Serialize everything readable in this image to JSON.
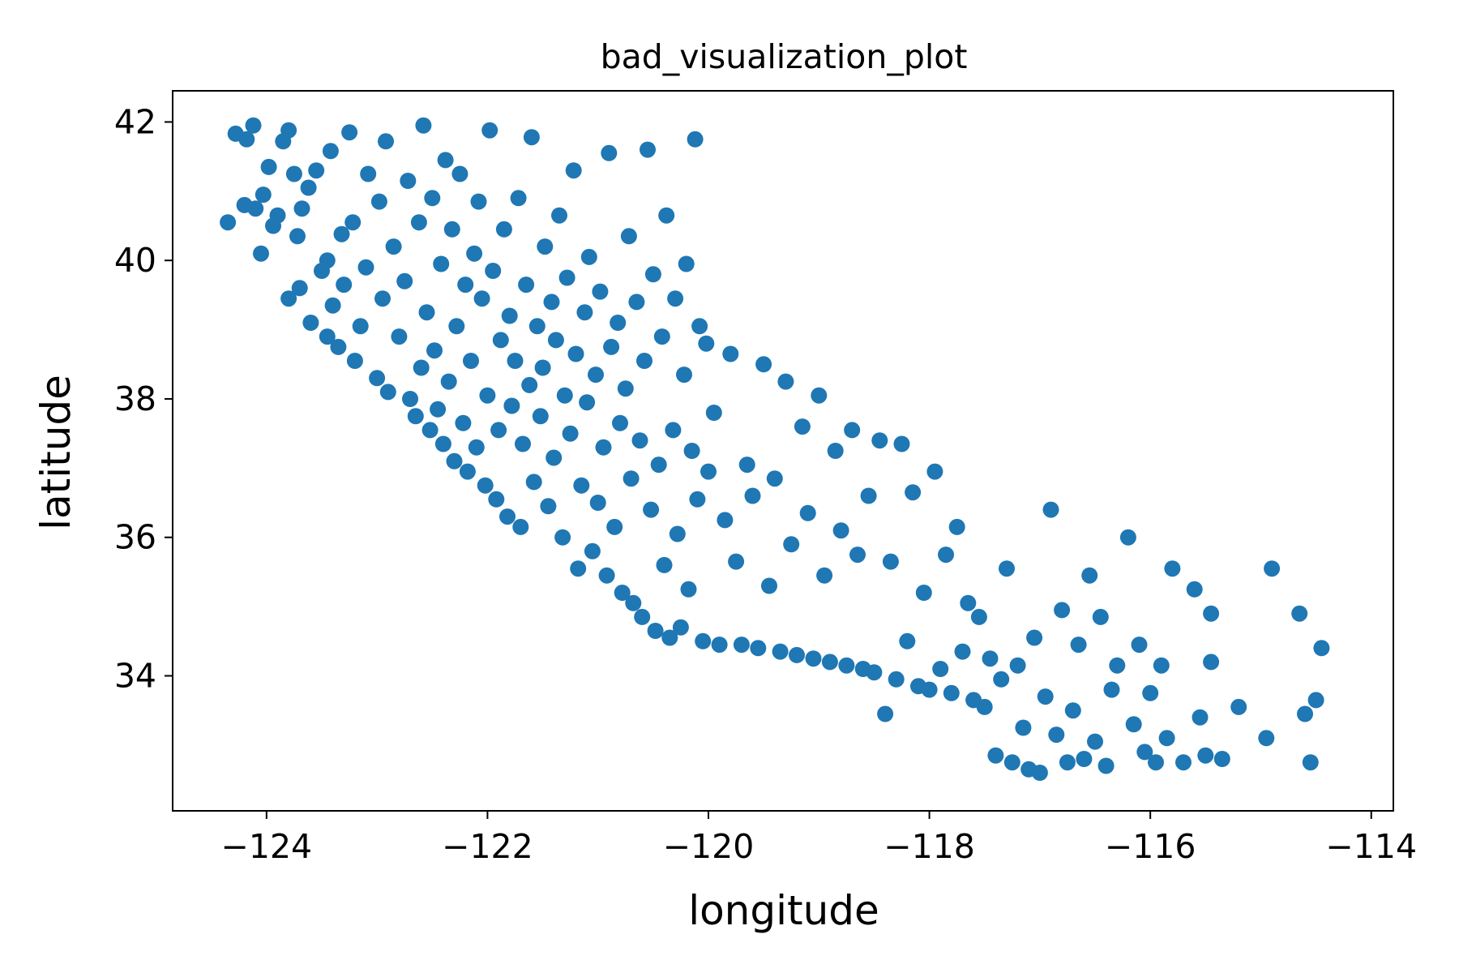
{
  "chart_data": {
    "type": "scatter",
    "title": "bad_visualization_plot",
    "xlabel": "longitude",
    "ylabel": "latitude",
    "xlim": [
      -124.85,
      -113.8
    ],
    "ylim": [
      32.05,
      42.45
    ],
    "xticks": [
      -124,
      -122,
      -120,
      -118,
      -116,
      -114
    ],
    "yticks": [
      34,
      36,
      38,
      40,
      42
    ],
    "xtick_labels": [
      "−124",
      "−122",
      "−120",
      "−118",
      "−116",
      "−114"
    ],
    "ytick_labels": [
      "34",
      "36",
      "38",
      "40",
      "42"
    ],
    "grid": false,
    "legend": "none",
    "marker_color": "#1f77b4",
    "series": [
      {
        "values": [
          [
            -124.35,
            40.55
          ],
          [
            -124.28,
            41.83
          ],
          [
            -124.2,
            40.8
          ],
          [
            -124.18,
            41.75
          ],
          [
            -124.12,
            41.95
          ],
          [
            -124.1,
            40.75
          ],
          [
            -124.05,
            40.1
          ],
          [
            -124.03,
            40.95
          ],
          [
            -123.98,
            41.35
          ],
          [
            -123.94,
            40.5
          ],
          [
            -123.9,
            40.65
          ],
          [
            -123.85,
            41.72
          ],
          [
            -123.8,
            41.88
          ],
          [
            -123.8,
            39.45
          ],
          [
            -123.75,
            41.25
          ],
          [
            -123.72,
            40.35
          ],
          [
            -123.7,
            39.6
          ],
          [
            -123.68,
            40.75
          ],
          [
            -123.62,
            41.05
          ],
          [
            -123.6,
            39.1
          ],
          [
            -123.55,
            41.3
          ],
          [
            -123.5,
            39.85
          ],
          [
            -123.45,
            38.9
          ],
          [
            -123.45,
            40.0
          ],
          [
            -123.42,
            41.58
          ],
          [
            -123.4,
            39.35
          ],
          [
            -123.35,
            38.75
          ],
          [
            -123.32,
            40.38
          ],
          [
            -123.3,
            39.65
          ],
          [
            -123.25,
            41.85
          ],
          [
            -123.22,
            40.55
          ],
          [
            -123.2,
            38.55
          ],
          [
            -123.15,
            39.05
          ],
          [
            -123.1,
            39.9
          ],
          [
            -123.08,
            41.25
          ],
          [
            -123.0,
            38.3
          ],
          [
            -122.98,
            40.85
          ],
          [
            -122.95,
            39.45
          ],
          [
            -122.92,
            41.72
          ],
          [
            -122.9,
            38.1
          ],
          [
            -122.85,
            40.2
          ],
          [
            -122.8,
            38.9
          ],
          [
            -122.75,
            39.7
          ],
          [
            -122.72,
            41.15
          ],
          [
            -122.7,
            38.0
          ],
          [
            -122.65,
            37.75
          ],
          [
            -122.62,
            40.55
          ],
          [
            -122.6,
            38.45
          ],
          [
            -122.58,
            41.95
          ],
          [
            -122.55,
            39.25
          ],
          [
            -122.52,
            37.55
          ],
          [
            -122.5,
            40.9
          ],
          [
            -122.48,
            38.7
          ],
          [
            -122.45,
            37.85
          ],
          [
            -122.42,
            39.95
          ],
          [
            -122.4,
            37.35
          ],
          [
            -122.38,
            41.45
          ],
          [
            -122.35,
            38.25
          ],
          [
            -122.32,
            40.45
          ],
          [
            -122.3,
            37.1
          ],
          [
            -122.28,
            39.05
          ],
          [
            -122.25,
            41.25
          ],
          [
            -122.22,
            37.65
          ],
          [
            -122.2,
            39.65
          ],
          [
            -122.18,
            36.95
          ],
          [
            -122.15,
            38.55
          ],
          [
            -122.12,
            40.1
          ],
          [
            -122.1,
            37.3
          ],
          [
            -122.08,
            40.85
          ],
          [
            -122.05,
            39.45
          ],
          [
            -122.02,
            36.75
          ],
          [
            -122.0,
            38.05
          ],
          [
            -121.98,
            41.88
          ],
          [
            -121.95,
            39.85
          ],
          [
            -121.92,
            36.55
          ],
          [
            -121.9,
            37.55
          ],
          [
            -121.88,
            38.85
          ],
          [
            -121.85,
            40.45
          ],
          [
            -121.82,
            36.3
          ],
          [
            -121.8,
            39.2
          ],
          [
            -121.78,
            37.9
          ],
          [
            -121.75,
            38.55
          ],
          [
            -121.72,
            40.9
          ],
          [
            -121.7,
            36.15
          ],
          [
            -121.68,
            37.35
          ],
          [
            -121.65,
            39.65
          ],
          [
            -121.62,
            38.2
          ],
          [
            -121.6,
            41.78
          ],
          [
            -121.58,
            36.8
          ],
          [
            -121.55,
            39.05
          ],
          [
            -121.52,
            37.75
          ],
          [
            -121.5,
            38.45
          ],
          [
            -121.48,
            40.2
          ],
          [
            -121.45,
            36.45
          ],
          [
            -121.42,
            39.4
          ],
          [
            -121.4,
            37.15
          ],
          [
            -121.38,
            38.85
          ],
          [
            -121.35,
            40.65
          ],
          [
            -121.32,
            36.0
          ],
          [
            -121.3,
            38.05
          ],
          [
            -121.28,
            39.75
          ],
          [
            -121.25,
            37.5
          ],
          [
            -121.22,
            41.3
          ],
          [
            -121.2,
            38.65
          ],
          [
            -121.18,
            35.55
          ],
          [
            -121.15,
            36.75
          ],
          [
            -121.12,
            39.25
          ],
          [
            -121.1,
            37.95
          ],
          [
            -121.08,
            40.05
          ],
          [
            -121.05,
            35.8
          ],
          [
            -121.02,
            38.35
          ],
          [
            -121.0,
            36.5
          ],
          [
            -120.98,
            39.55
          ],
          [
            -120.95,
            37.3
          ],
          [
            -120.92,
            35.45
          ],
          [
            -120.9,
            41.55
          ],
          [
            -120.88,
            38.75
          ],
          [
            -120.85,
            36.15
          ],
          [
            -120.82,
            39.1
          ],
          [
            -120.8,
            37.65
          ],
          [
            -120.78,
            35.2
          ],
          [
            -120.75,
            38.15
          ],
          [
            -120.72,
            40.35
          ],
          [
            -120.7,
            36.85
          ],
          [
            -120.68,
            35.05
          ],
          [
            -120.65,
            39.4
          ],
          [
            -120.62,
            37.4
          ],
          [
            -120.6,
            34.85
          ],
          [
            -120.58,
            38.55
          ],
          [
            -120.55,
            41.6
          ],
          [
            -120.52,
            36.4
          ],
          [
            -120.5,
            39.8
          ],
          [
            -120.48,
            34.65
          ],
          [
            -120.45,
            37.05
          ],
          [
            -120.42,
            38.9
          ],
          [
            -120.4,
            35.6
          ],
          [
            -120.38,
            40.65
          ],
          [
            -120.35,
            34.55
          ],
          [
            -120.32,
            37.55
          ],
          [
            -120.3,
            39.45
          ],
          [
            -120.28,
            36.05
          ],
          [
            -120.25,
            34.7
          ],
          [
            -120.22,
            38.35
          ],
          [
            -120.2,
            39.95
          ],
          [
            -120.18,
            35.25
          ],
          [
            -120.15,
            37.25
          ],
          [
            -120.12,
            41.75
          ],
          [
            -120.1,
            36.55
          ],
          [
            -120.08,
            39.05
          ],
          [
            -120.05,
            34.5
          ],
          [
            -120.02,
            38.8
          ],
          [
            -120.0,
            36.95
          ],
          [
            -119.95,
            37.8
          ],
          [
            -119.9,
            34.45
          ],
          [
            -119.85,
            36.25
          ],
          [
            -119.8,
            38.65
          ],
          [
            -119.75,
            35.65
          ],
          [
            -119.7,
            34.45
          ],
          [
            -119.65,
            37.05
          ],
          [
            -119.6,
            36.6
          ],
          [
            -119.55,
            34.4
          ],
          [
            -119.5,
            38.5
          ],
          [
            -119.45,
            35.3
          ],
          [
            -119.4,
            36.85
          ],
          [
            -119.35,
            34.35
          ],
          [
            -119.3,
            38.25
          ],
          [
            -119.25,
            35.9
          ],
          [
            -119.2,
            34.3
          ],
          [
            -119.15,
            37.6
          ],
          [
            -119.1,
            36.35
          ],
          [
            -119.05,
            34.25
          ],
          [
            -119.0,
            38.05
          ],
          [
            -118.95,
            35.45
          ],
          [
            -118.9,
            34.2
          ],
          [
            -118.85,
            37.25
          ],
          [
            -118.8,
            36.1
          ],
          [
            -118.75,
            34.15
          ],
          [
            -118.7,
            37.55
          ],
          [
            -118.65,
            35.75
          ],
          [
            -118.6,
            34.1
          ],
          [
            -118.55,
            36.6
          ],
          [
            -118.5,
            34.05
          ],
          [
            -118.45,
            37.4
          ],
          [
            -118.4,
            33.45
          ],
          [
            -118.35,
            35.65
          ],
          [
            -118.3,
            33.95
          ],
          [
            -118.25,
            37.35
          ],
          [
            -118.2,
            34.5
          ],
          [
            -118.15,
            36.65
          ],
          [
            -118.1,
            33.85
          ],
          [
            -118.05,
            35.2
          ],
          [
            -118.0,
            33.8
          ],
          [
            -117.95,
            36.95
          ],
          [
            -117.9,
            34.1
          ],
          [
            -117.85,
            35.75
          ],
          [
            -117.8,
            33.75
          ],
          [
            -117.75,
            36.15
          ],
          [
            -117.7,
            34.35
          ],
          [
            -117.65,
            35.05
          ],
          [
            -117.6,
            33.65
          ],
          [
            -117.55,
            34.85
          ],
          [
            -117.5,
            33.55
          ],
          [
            -117.45,
            34.25
          ],
          [
            -117.4,
            32.85
          ],
          [
            -117.35,
            33.95
          ],
          [
            -117.3,
            35.55
          ],
          [
            -117.25,
            32.75
          ],
          [
            -117.2,
            34.15
          ],
          [
            -117.15,
            33.25
          ],
          [
            -117.1,
            32.65
          ],
          [
            -117.05,
            34.55
          ],
          [
            -117.0,
            32.6
          ],
          [
            -116.95,
            33.7
          ],
          [
            -116.9,
            36.4
          ],
          [
            -116.85,
            33.15
          ],
          [
            -116.8,
            34.95
          ],
          [
            -116.75,
            32.75
          ],
          [
            -116.7,
            33.5
          ],
          [
            -116.65,
            34.45
          ],
          [
            -116.6,
            32.8
          ],
          [
            -116.55,
            35.45
          ],
          [
            -116.5,
            33.05
          ],
          [
            -116.45,
            34.85
          ],
          [
            -116.4,
            32.7
          ],
          [
            -116.35,
            33.8
          ],
          [
            -116.3,
            34.15
          ],
          [
            -116.2,
            36.0
          ],
          [
            -116.15,
            33.3
          ],
          [
            -116.1,
            34.45
          ],
          [
            -116.05,
            32.9
          ],
          [
            -116.0,
            33.75
          ],
          [
            -115.95,
            32.75
          ],
          [
            -115.9,
            34.15
          ],
          [
            -115.85,
            33.1
          ],
          [
            -115.8,
            35.55
          ],
          [
            -115.7,
            32.75
          ],
          [
            -115.6,
            35.25
          ],
          [
            -115.55,
            33.4
          ],
          [
            -115.5,
            32.85
          ],
          [
            -115.45,
            34.2
          ],
          [
            -115.45,
            34.9
          ],
          [
            -115.35,
            32.8
          ],
          [
            -115.2,
            33.55
          ],
          [
            -114.95,
            33.1
          ],
          [
            -114.9,
            35.55
          ],
          [
            -114.65,
            34.9
          ],
          [
            -114.6,
            33.45
          ],
          [
            -114.55,
            32.75
          ],
          [
            -114.5,
            33.65
          ],
          [
            -114.45,
            34.4
          ]
        ]
      }
    ]
  }
}
